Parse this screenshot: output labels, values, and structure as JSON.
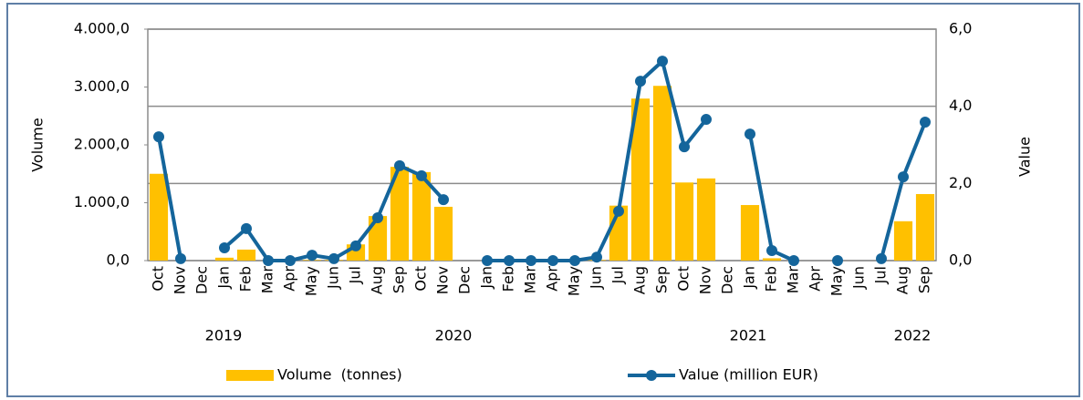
{
  "chart_data": {
    "type": "bar_line",
    "categories": [
      "Oct",
      "Nov",
      "Dec",
      "Jan",
      "Feb",
      "Mar",
      "Apr",
      "May",
      "Jun",
      "Jul",
      "Aug",
      "Sep",
      "Oct",
      "Nov",
      "Dec",
      "Jan",
      "Feb",
      "Mar",
      "Apr",
      "May",
      "Jun",
      "Jul",
      "Aug",
      "Sep",
      "Oct",
      "Nov",
      "Dec",
      "Jan",
      "Feb",
      "Mar",
      "Apr",
      "May",
      "Jun",
      "Jul",
      "Aug",
      "Sep"
    ],
    "category_groups": [
      {
        "label": "2019",
        "count": 3
      },
      {
        "label": "2020",
        "count": 12
      },
      {
        "label": "2021",
        "count": 12
      },
      {
        "label": "2022",
        "count": 9
      }
    ],
    "ylabel": "Volume",
    "y2label": "Value",
    "ylim": [
      0,
      4000
    ],
    "yticks": [
      {
        "value": 0,
        "label": "0,0"
      },
      {
        "value": 1000,
        "label": "1.000,0"
      },
      {
        "value": 2000,
        "label": "2.000,0"
      },
      {
        "value": 3000,
        "label": "3.000,0"
      },
      {
        "value": 4000,
        "label": "4.000,0"
      }
    ],
    "y2lim": [
      0,
      6
    ],
    "y2ticks": [
      {
        "value": 0,
        "label": "0,0"
      },
      {
        "value": 2,
        "label": "2,0"
      },
      {
        "value": 4,
        "label": "4,0"
      },
      {
        "value": 6,
        "label": "6,0"
      }
    ],
    "grid": true,
    "legend": "bottom",
    "series": [
      {
        "name": "Volume  (tonnes)",
        "type": "bar",
        "color": "#ffc000",
        "values": [
          1500,
          0,
          0,
          50,
          190,
          0,
          0,
          10,
          10,
          280,
          770,
          1620,
          1530,
          930,
          0,
          0,
          0,
          0,
          0,
          0,
          10,
          950,
          2800,
          3020,
          1350,
          1420,
          0,
          960,
          40,
          0,
          0,
          0,
          0,
          0,
          680,
          1150
        ]
      },
      {
        "name": "Value (million EUR)",
        "type": "line",
        "axis": "y2",
        "color": "#14659b",
        "values": [
          3.21,
          0.05,
          null,
          0.33,
          0.83,
          0,
          0,
          0.14,
          0.05,
          0.38,
          1.11,
          2.46,
          2.2,
          1.58,
          null,
          0,
          0,
          0,
          0,
          0,
          0.09,
          1.28,
          4.65,
          5.17,
          2.95,
          3.66,
          null,
          3.28,
          0.26,
          0,
          null,
          0,
          null,
          0.05,
          2.17,
          3.59
        ]
      }
    ]
  }
}
